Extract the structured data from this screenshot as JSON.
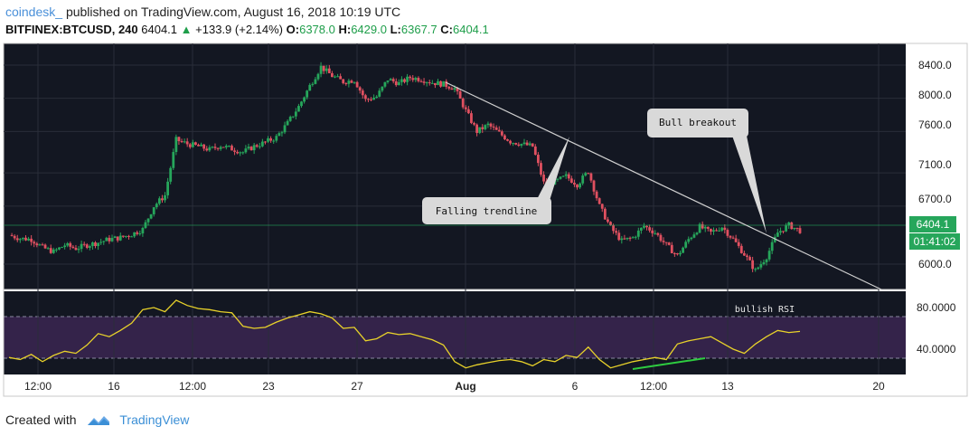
{
  "header": {
    "brand": "coindesk_",
    "published": "published on TradingView.com, August 16, 2018 10:19 UTC"
  },
  "quote": {
    "symbol": "BITFINEX:BTCUSD, 240",
    "last": "6404.1",
    "change": "+133.9 (+2.14%)",
    "o_label": "O:",
    "o": "6378.0",
    "h_label": "H:",
    "h": "6429.0",
    "l_label": "L:",
    "l": "6367.7",
    "c_label": "C:",
    "c": "6404.1",
    "up_arrow": "▲"
  },
  "footer": {
    "created_with": "Created with",
    "tradingview": "TradingView"
  },
  "chart_data": [
    {
      "type": "candlestick",
      "title": "",
      "y_ticks": [
        "8400.0",
        "8000.0",
        "7600.0",
        "7100.0",
        "6700.0",
        "6000.0"
      ],
      "x_ticks": [
        "12:00",
        "16",
        "12:00",
        "23",
        "27",
        "Aug",
        "6",
        "12:00",
        "13",
        "20"
      ],
      "ylim": [
        5650,
        8650
      ],
      "last_price_label": "6404.1",
      "countdown_label": "01:41:02",
      "annotations": [
        "Falling trendline",
        "Bull breakout"
      ],
      "colors": {
        "up": "#26a65b",
        "down": "#e05060",
        "background": "#131722"
      },
      "close_path": [
        [
          0,
          6350
        ],
        [
          1,
          6310
        ],
        [
          2,
          6300
        ],
        [
          3,
          6200
        ],
        [
          4,
          6150
        ],
        [
          5,
          6230
        ],
        [
          6,
          6190
        ],
        [
          7,
          6230
        ],
        [
          8,
          6260
        ],
        [
          9,
          6300
        ],
        [
          10,
          6320
        ],
        [
          11,
          6360
        ],
        [
          12,
          6420
        ],
        [
          13,
          6700
        ],
        [
          14,
          6830
        ],
        [
          15,
          7500
        ],
        [
          16,
          7450
        ],
        [
          17,
          7420
        ],
        [
          18,
          7380
        ],
        [
          19,
          7430
        ],
        [
          20,
          7390
        ],
        [
          21,
          7350
        ],
        [
          22,
          7420
        ],
        [
          23,
          7470
        ],
        [
          24,
          7530
        ],
        [
          25,
          7700
        ],
        [
          26,
          7900
        ],
        [
          27,
          8150
        ],
        [
          28,
          8380
        ],
        [
          29,
          8270
        ],
        [
          30,
          8200
        ],
        [
          31,
          8220
        ],
        [
          32,
          7980
        ],
        [
          33,
          8020
        ],
        [
          34,
          8230
        ],
        [
          35,
          8180
        ],
        [
          36,
          8250
        ],
        [
          37,
          8230
        ],
        [
          38,
          8190
        ],
        [
          39,
          8170
        ],
        [
          40,
          8120
        ],
        [
          41,
          7850
        ],
        [
          42,
          7600
        ],
        [
          43,
          7680
        ],
        [
          44,
          7580
        ],
        [
          45,
          7480
        ],
        [
          46,
          7450
        ],
        [
          47,
          7420
        ],
        [
          48,
          6980
        ],
        [
          49,
          6990
        ],
        [
          50,
          7060
        ],
        [
          51,
          6960
        ],
        [
          52,
          7120
        ],
        [
          53,
          6700
        ],
        [
          54,
          6440
        ],
        [
          55,
          6280
        ],
        [
          56,
          6320
        ],
        [
          57,
          6460
        ],
        [
          58,
          6380
        ],
        [
          59,
          6230
        ],
        [
          60,
          6100
        ],
        [
          61,
          6300
        ],
        [
          62,
          6450
        ],
        [
          63,
          6380
        ],
        [
          64,
          6450
        ],
        [
          65,
          6300
        ],
        [
          66,
          6120
        ],
        [
          67,
          5920
        ],
        [
          68,
          6090
        ],
        [
          69,
          6380
        ],
        [
          70,
          6470
        ],
        [
          71,
          6404
        ]
      ]
    },
    {
      "type": "line",
      "title": "",
      "y_ticks": [
        "80.0000",
        "40.0000"
      ],
      "ylim": [
        10,
        95
      ],
      "annotation": "bullish RSI",
      "colors": {
        "line": "#e8d22a",
        "divergence": "#2ecc40",
        "band": "#3a2650"
      },
      "rsi": [
        [
          0,
          32
        ],
        [
          1,
          30
        ],
        [
          2,
          35
        ],
        [
          3,
          28
        ],
        [
          4,
          34
        ],
        [
          5,
          38
        ],
        [
          6,
          36
        ],
        [
          7,
          44
        ],
        [
          8,
          55
        ],
        [
          9,
          52
        ],
        [
          10,
          58
        ],
        [
          11,
          65
        ],
        [
          12,
          78
        ],
        [
          13,
          80
        ],
        [
          14,
          76
        ],
        [
          15,
          87
        ],
        [
          16,
          82
        ],
        [
          17,
          79
        ],
        [
          18,
          78
        ],
        [
          19,
          76
        ],
        [
          20,
          75
        ],
        [
          21,
          62
        ],
        [
          22,
          60
        ],
        [
          23,
          61
        ],
        [
          24,
          66
        ],
        [
          25,
          70
        ],
        [
          26,
          73
        ],
        [
          27,
          76
        ],
        [
          28,
          74
        ],
        [
          29,
          70
        ],
        [
          30,
          60
        ],
        [
          31,
          61
        ],
        [
          32,
          48
        ],
        [
          33,
          50
        ],
        [
          34,
          56
        ],
        [
          35,
          54
        ],
        [
          36,
          55
        ],
        [
          37,
          52
        ],
        [
          38,
          49
        ],
        [
          39,
          44
        ],
        [
          40,
          28
        ],
        [
          41,
          22
        ],
        [
          42,
          25
        ],
        [
          43,
          27
        ],
        [
          44,
          29
        ],
        [
          45,
          30
        ],
        [
          46,
          28
        ],
        [
          47,
          24
        ],
        [
          48,
          30
        ],
        [
          49,
          28
        ],
        [
          50,
          34
        ],
        [
          51,
          32
        ],
        [
          52,
          42
        ],
        [
          53,
          30
        ],
        [
          54,
          22
        ],
        [
          55,
          25
        ],
        [
          56,
          28
        ],
        [
          57,
          30
        ],
        [
          58,
          32
        ],
        [
          59,
          30
        ],
        [
          60,
          45
        ],
        [
          61,
          48
        ],
        [
          62,
          50
        ],
        [
          63,
          52
        ],
        [
          64,
          46
        ],
        [
          65,
          40
        ],
        [
          66,
          36
        ],
        [
          67,
          45
        ],
        [
          68,
          52
        ],
        [
          69,
          58
        ],
        [
          70,
          56
        ],
        [
          71,
          57
        ]
      ]
    }
  ]
}
